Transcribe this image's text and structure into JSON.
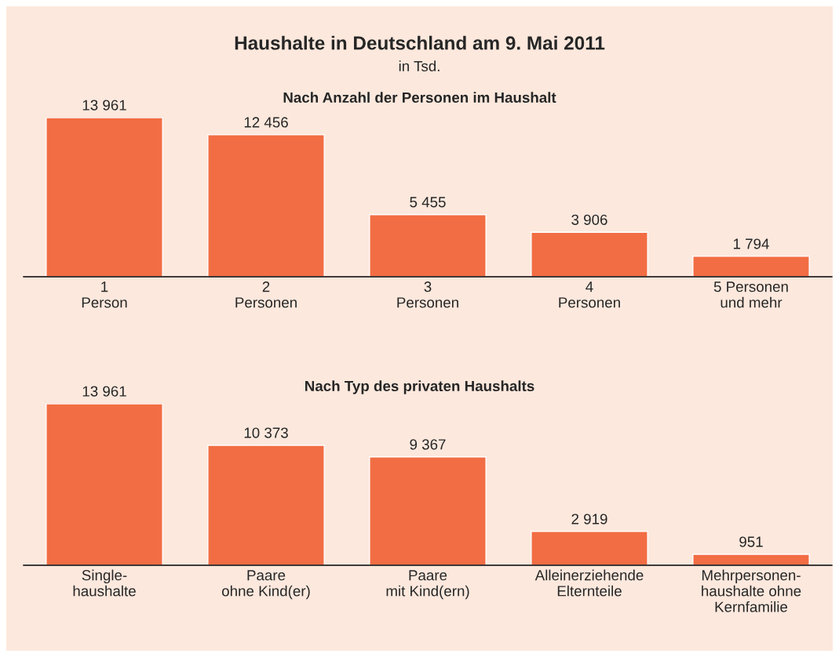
{
  "chart_data": [
    {
      "type": "bar",
      "title": "Haushalte in Deutschland am 9. Mai 2011",
      "subtitle": "in Tsd.",
      "annotations": [
        "Nach Anzahl der Personen im Haushalt"
      ],
      "categories": [
        "1\nPerson",
        "2\nPersonen",
        "3\nPersonen",
        "4\nPersonen",
        "5 Personen\nund mehr"
      ],
      "values": [
        13961,
        12456,
        5455,
        3906,
        1794
      ],
      "value_labels": [
        "13 961",
        "12 456",
        "5 455",
        "3 906",
        "1 794"
      ],
      "color": "#f26d43",
      "tick_labels": "x",
      "grid": false,
      "legend": false
    },
    {
      "type": "bar",
      "title": "Nach Typ des privaten Haushalts",
      "categories": [
        "Single-\nhaushalte",
        "Paare\nohne Kind(er)",
        "Paare\nmit Kind(ern)",
        "Alleinerziehende\nElternteile",
        "Mehrpersonen-\nhaushalte ohne\nKernfamilie"
      ],
      "values": [
        13961,
        10373,
        9367,
        2919,
        951
      ],
      "value_labels": [
        "13 961",
        "10 373",
        "9 367",
        "2 919",
        "951"
      ],
      "color": "#f26d43",
      "tick_labels": "x",
      "grid": false,
      "legend": false
    }
  ]
}
